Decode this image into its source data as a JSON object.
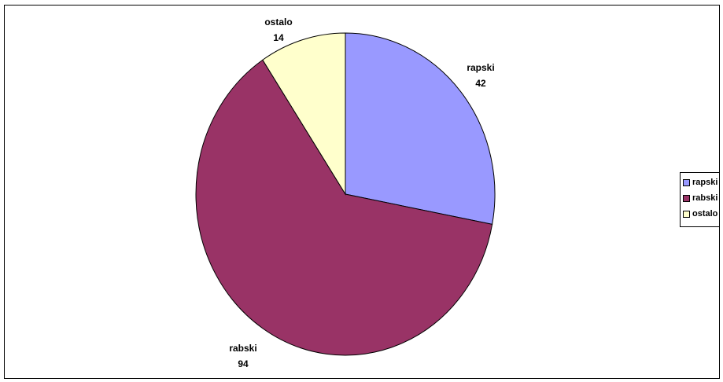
{
  "chart_data": {
    "type": "pie",
    "title": "",
    "categories": [
      "rapski",
      "rabski",
      "ostalo"
    ],
    "values": [
      42,
      94,
      14
    ],
    "colors": [
      "#9999ff",
      "#993366",
      "#ffffcc"
    ],
    "slice_labels": [
      {
        "name": "rapski",
        "value": "42"
      },
      {
        "name": "rabski",
        "value": "94"
      },
      {
        "name": "ostalo",
        "value": "14"
      }
    ],
    "legend": {
      "placement": "right",
      "items": [
        "rapski",
        "rabski",
        "ostalo"
      ]
    },
    "start_angle_deg": 0,
    "direction": "clockwise"
  }
}
